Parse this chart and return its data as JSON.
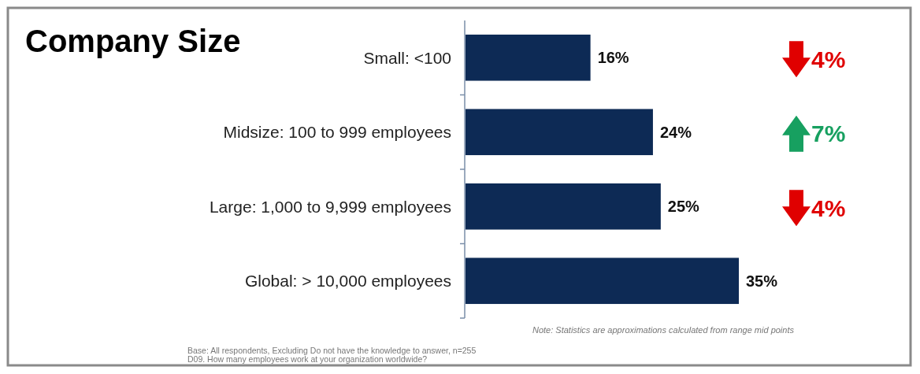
{
  "chart_data": {
    "type": "bar",
    "orientation": "horizontal",
    "title": "Company Size",
    "categories": [
      "Small: <100",
      "Midsize: 100 to 999 employees",
      "Large: 1,000 to 9,999 employees",
      "Global: > 10,000 employees"
    ],
    "values": [
      16,
      24,
      25,
      35
    ],
    "color": "#0d2a55",
    "data_labels": true,
    "value_labels": [
      "16%",
      "24%",
      "25%",
      "35%"
    ],
    "annotations": [
      "4%",
      "7%",
      "4%",
      "Note: Statistics are approximations calculated from range mid points",
      "Base: All respondents, Excluding Do not have the knowledge to answer, n=255",
      "D09. How many employees work at your organization worldwide?"
    ]
  }
}
